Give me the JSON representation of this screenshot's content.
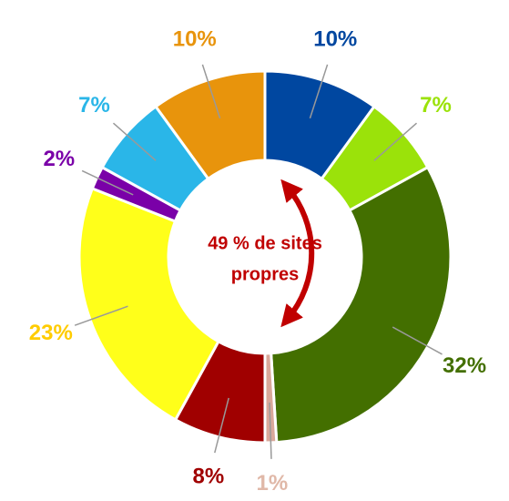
{
  "chart_data": {
    "type": "donut",
    "values": [
      10,
      7,
      32,
      1,
      8,
      23,
      2,
      7,
      10
    ],
    "value_labels": [
      "10%",
      "7%",
      "32%",
      "1%",
      "8%",
      "23%",
      "2%",
      "7%",
      "10%"
    ],
    "colors": [
      "#0047a0",
      "#9be20a",
      "#436f00",
      "#d9a89a",
      "#a00000",
      "#ffff1a",
      "#7a00a8",
      "#2ab6e8",
      "#e8940c"
    ],
    "label_colors": [
      "#0047a0",
      "#9be20a",
      "#436f00",
      "#e0b8a8",
      "#a00000",
      "#ffcc00",
      "#7a00a8",
      "#2ab6e8",
      "#e8940c"
    ],
    "annotation": [
      "49 % de sites",
      "propres"
    ]
  }
}
